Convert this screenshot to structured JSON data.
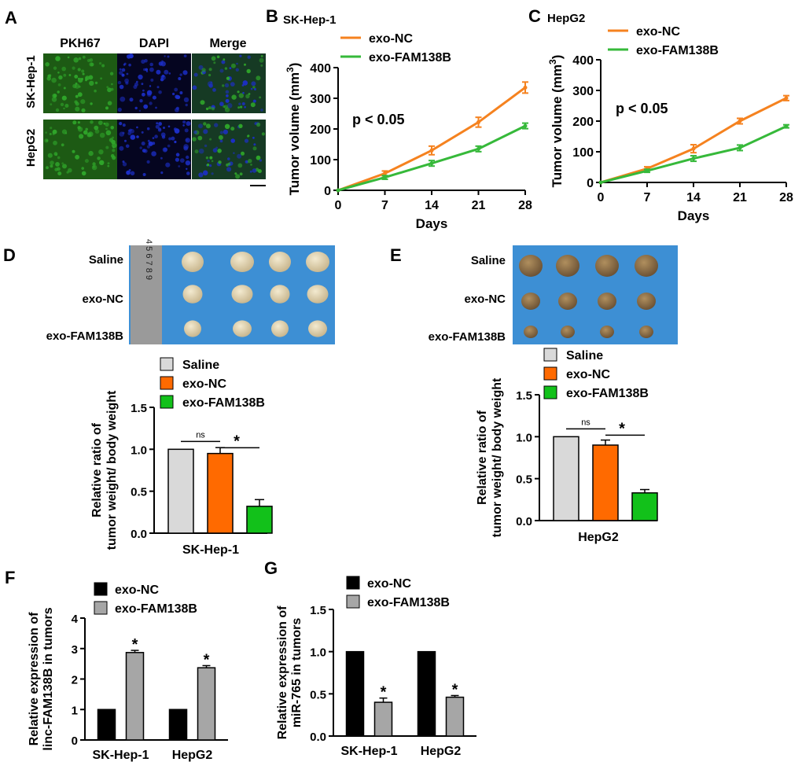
{
  "colors": {
    "orange": "#f5821f",
    "green": "#36b93a",
    "orange_bar": "#ff6a00",
    "green_bar": "#12c11a",
    "grey_bar": "#d9d9d9",
    "black_bar": "#000000",
    "grey_bar2": "#a6a6a6",
    "micro_green": "#2fa52a",
    "micro_blue": "#1c2fc8",
    "photo_bg": "#3d8fd4"
  },
  "panelA": {
    "letter": "A",
    "col_labels": [
      "PKH67",
      "DAPI",
      "Merge"
    ],
    "row_labels": [
      "SK-Hep-1",
      "HepG2"
    ]
  },
  "panelD": {
    "letter": "D",
    "photo_rows": [
      "Saline",
      "exo-NC",
      "exo-FAM138B"
    ],
    "ruler_text": "4 5 6 7 8 9"
  },
  "panelE": {
    "letter": "E",
    "photo_rows": [
      "Saline",
      "exo-NC",
      "exo-FAM138B"
    ]
  },
  "chart_data": [
    {
      "panel": "B",
      "type": "line",
      "title": "SK-Hep-1",
      "xlabel": "Days",
      "ylabel": "Tumor volume (mm3)",
      "x": [
        0,
        7,
        14,
        21,
        28
      ],
      "xlim": [
        0,
        28
      ],
      "ylim": [
        0,
        400
      ],
      "yticks": [
        0,
        100,
        200,
        300,
        400
      ],
      "xticks": [
        0,
        7,
        14,
        21,
        28
      ],
      "annotation": "p < 0.05",
      "series": [
        {
          "name": "exo-NC",
          "values": [
            0,
            55,
            130,
            222,
            335
          ],
          "errors": [
            0,
            8,
            14,
            16,
            18
          ]
        },
        {
          "name": "exo-FAM138B",
          "values": [
            0,
            42,
            88,
            135,
            210
          ],
          "errors": [
            0,
            6,
            9,
            9,
            9
          ]
        }
      ]
    },
    {
      "panel": "C",
      "type": "line",
      "title": "HepG2",
      "xlabel": "Days",
      "ylabel": "Tumor volume (mm3)",
      "x": [
        0,
        7,
        14,
        21,
        28
      ],
      "xlim": [
        0,
        28
      ],
      "ylim": [
        0,
        400
      ],
      "yticks": [
        0,
        100,
        200,
        300,
        400
      ],
      "xticks": [
        0,
        7,
        14,
        21,
        28
      ],
      "annotation": "p < 0.05",
      "series": [
        {
          "name": "exo-NC",
          "values": [
            0,
            45,
            110,
            200,
            275
          ],
          "errors": [
            0,
            6,
            13,
            9,
            8
          ]
        },
        {
          "name": "exo-FAM138B",
          "values": [
            0,
            38,
            78,
            113,
            183
          ],
          "errors": [
            0,
            5,
            9,
            9,
            5
          ]
        }
      ]
    },
    {
      "panel": "D",
      "type": "bar",
      "xlabel": "SK-Hep-1",
      "ylabel": "Relative ratio of tumor weight/ body weight",
      "ylim": [
        0,
        1.5
      ],
      "yticks": [
        0.0,
        0.5,
        1.0,
        1.5
      ],
      "series": [
        {
          "name": "Saline",
          "value": 1.0,
          "error": 0
        },
        {
          "name": "exo-NC",
          "value": 0.95,
          "error": 0.07
        },
        {
          "name": "exo-FAM138B",
          "value": 0.32,
          "error": 0.08
        }
      ],
      "significance": [
        "ns",
        "*"
      ]
    },
    {
      "panel": "E",
      "type": "bar",
      "xlabel": "HepG2",
      "ylabel": "Relative ratio of tumor weight/ body weight",
      "ylim": [
        0,
        1.5
      ],
      "yticks": [
        0.0,
        0.5,
        1.0,
        1.5
      ],
      "series": [
        {
          "name": "Saline",
          "value": 1.0,
          "error": 0
        },
        {
          "name": "exo-NC",
          "value": 0.9,
          "error": 0.06
        },
        {
          "name": "exo-FAM138B",
          "value": 0.33,
          "error": 0.04
        }
      ],
      "significance": [
        "ns",
        "*"
      ]
    },
    {
      "panel": "F",
      "type": "bar",
      "ylabel": "Relative expression of linc-FAM138B in tumors",
      "categories": [
        "SK-Hep-1",
        "HepG2"
      ],
      "ylim": [
        0,
        4
      ],
      "yticks": [
        0,
        1,
        2,
        3,
        4
      ],
      "series": [
        {
          "name": "exo-NC",
          "values": [
            1,
            1
          ],
          "errors": [
            0,
            0
          ]
        },
        {
          "name": "exo-FAM138B",
          "values": [
            2.87,
            2.37
          ],
          "errors": [
            0.07,
            0.07
          ],
          "marks": [
            "*",
            "*"
          ]
        }
      ]
    },
    {
      "panel": "G",
      "type": "bar",
      "ylabel": "Relative expression of miR-765 in tumors",
      "categories": [
        "SK-Hep-1",
        "HepG2"
      ],
      "ylim": [
        0,
        1.5
      ],
      "yticks": [
        0.0,
        0.5,
        1.0,
        1.5
      ],
      "series": [
        {
          "name": "exo-NC",
          "values": [
            1,
            1
          ],
          "errors": [
            0,
            0
          ]
        },
        {
          "name": "exo-FAM138B",
          "values": [
            0.4,
            0.46
          ],
          "errors": [
            0.05,
            0.02
          ],
          "marks": [
            "*",
            "*"
          ]
        }
      ]
    }
  ]
}
